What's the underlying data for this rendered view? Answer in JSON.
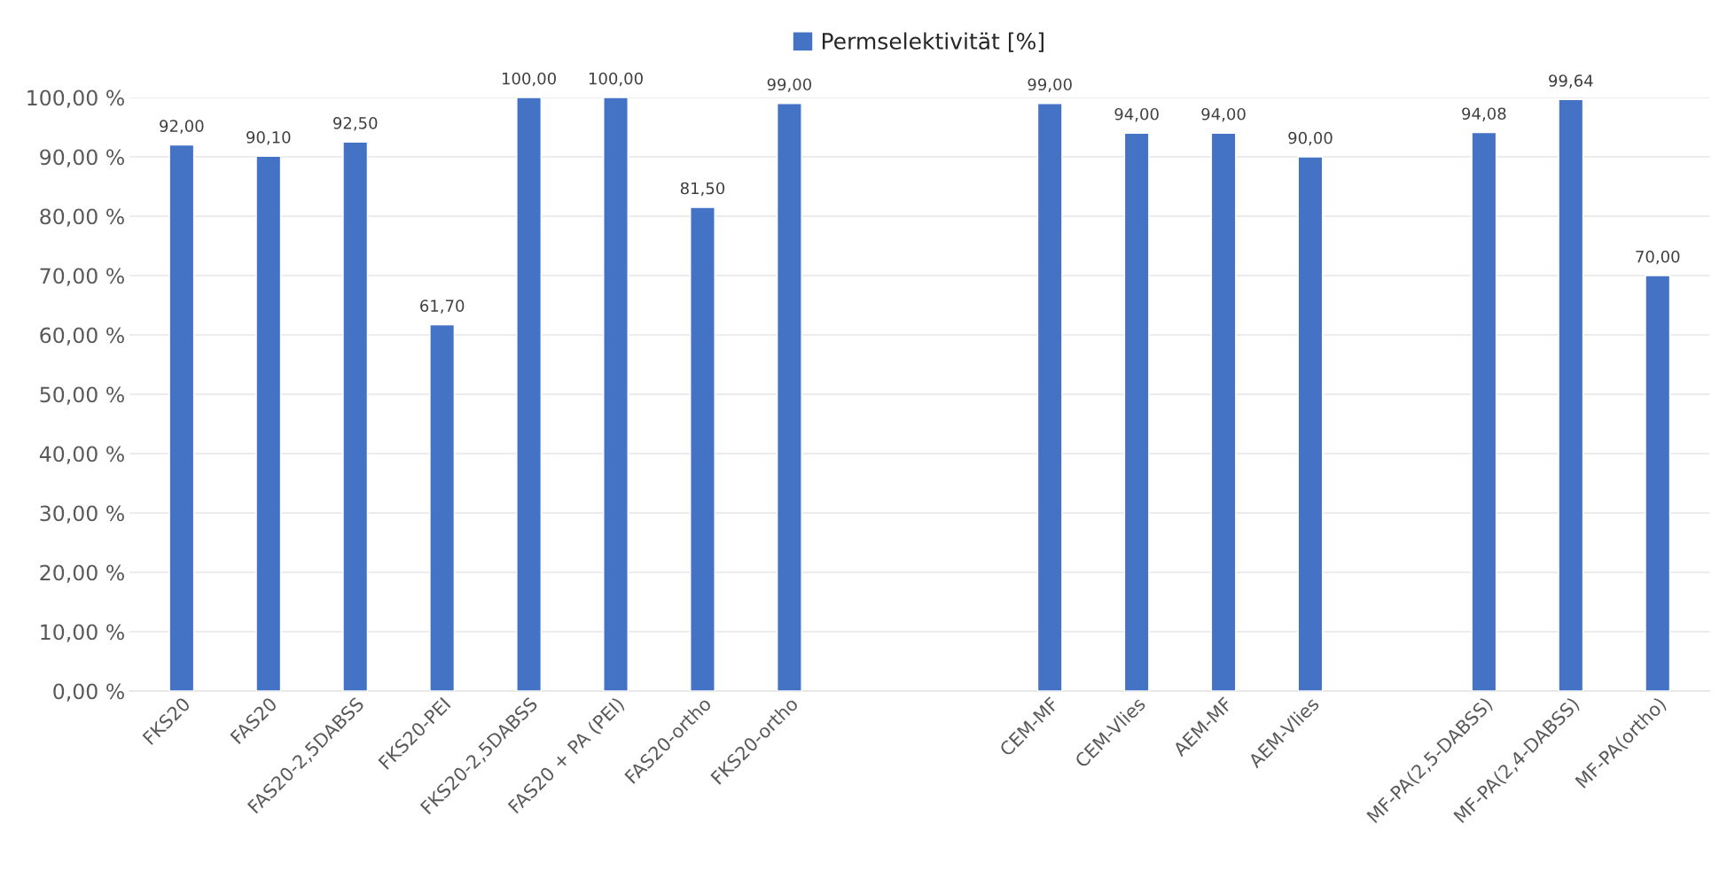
{
  "chart_data": {
    "type": "bar",
    "categories": [
      "FKS20",
      "FAS20",
      "FAS20-2,5DABSS",
      "FKS20-PEI",
      "FKS20-2,5DABSS",
      "FAS20 + PA (PEI)",
      "FAS20-ortho",
      "FKS20-ortho",
      null,
      null,
      "CEM-MF",
      "CEM-Vlies",
      "AEM-MF",
      "AEM-Vlies",
      null,
      "MF-PA(2,5-DABSS)",
      "MF-PA(2,4-DABSS)",
      "MF-PA(ortho)"
    ],
    "series": [
      {
        "name": "Permselektivität [%]",
        "color": "#4472c4",
        "values": [
          92.0,
          90.1,
          92.5,
          61.7,
          100.0,
          100.0,
          81.5,
          99.0,
          null,
          null,
          99.0,
          94.0,
          94.0,
          90.0,
          null,
          94.08,
          99.64,
          70.0
        ],
        "value_labels": [
          "92,00",
          "90,10",
          "92,50",
          "61,70",
          "100,00",
          "100,00",
          "81,50",
          "99,00",
          null,
          null,
          "99,00",
          "94,00",
          "94,00",
          "90,00",
          null,
          "94,08",
          "99,64",
          "70,00"
        ]
      }
    ],
    "ylim": [
      0,
      100
    ],
    "yticks": [
      {
        "value": 0,
        "label": "0,00 %"
      },
      {
        "value": 10,
        "label": "10,00 %"
      },
      {
        "value": 20,
        "label": "20,00 %"
      },
      {
        "value": 30,
        "label": "30,00 %"
      },
      {
        "value": 40,
        "label": "40,00 %"
      },
      {
        "value": 50,
        "label": "50,00 %"
      },
      {
        "value": 60,
        "label": "60,00 %"
      },
      {
        "value": 70,
        "label": "70,00 %"
      },
      {
        "value": 80,
        "label": "80,00 %"
      },
      {
        "value": 90,
        "label": "90,00 %"
      },
      {
        "value": 100,
        "label": "100,00 %"
      }
    ],
    "grid": "y",
    "legend": "top"
  }
}
